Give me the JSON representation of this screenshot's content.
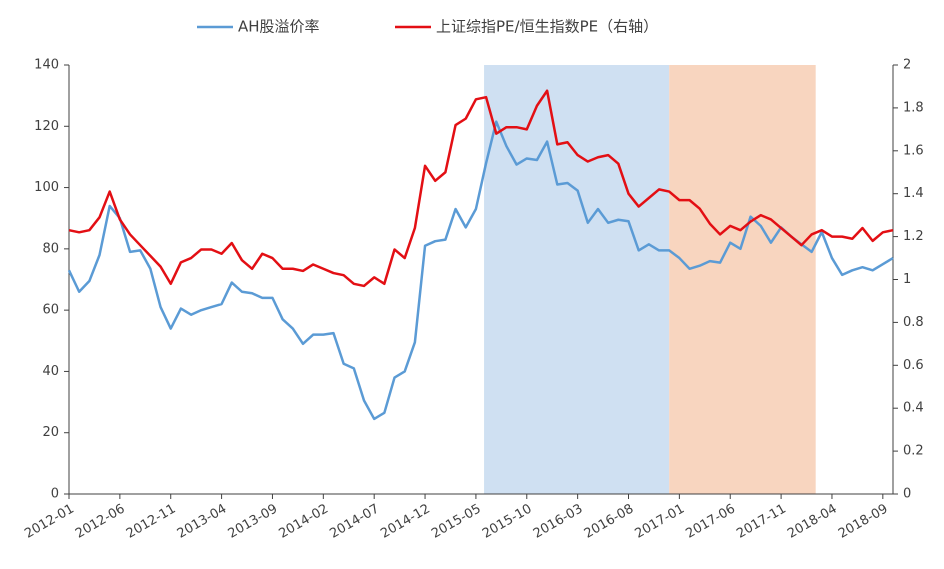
{
  "chart_data": {
    "type": "line",
    "categories": [
      "2012-01",
      null,
      null,
      null,
      null,
      "2012-06",
      null,
      null,
      null,
      null,
      "2012-11",
      null,
      null,
      null,
      null,
      "2013-04",
      null,
      null,
      null,
      null,
      "2013-09",
      null,
      null,
      null,
      null,
      "2014-02",
      null,
      null,
      null,
      null,
      "2014-07",
      null,
      null,
      null,
      null,
      "2014-12",
      null,
      null,
      null,
      null,
      "2015-05",
      null,
      null,
      null,
      null,
      "2015-10",
      null,
      null,
      null,
      null,
      "2016-03",
      null,
      null,
      null,
      null,
      "2016-08",
      null,
      null,
      null,
      null,
      "2017-01",
      null,
      null,
      null,
      null,
      "2017-06",
      null,
      null,
      null,
      null,
      "2017-11",
      null,
      null,
      null,
      null,
      "2018-04",
      null,
      null,
      null,
      null,
      "2018-09",
      null
    ],
    "series": [
      {
        "name": "AH股溢价率",
        "color": "#5b9bd5",
        "values": [
          73,
          66,
          69.5,
          78,
          94,
          90,
          79,
          79.5,
          73.5,
          61,
          54,
          60.5,
          58.5,
          60,
          61,
          62,
          69,
          66,
          65.5,
          64,
          64,
          57,
          54,
          49,
          52,
          52,
          52.5,
          42.5,
          41,
          30.5,
          24.5,
          26.5,
          38,
          40,
          49.5,
          81,
          82.5,
          83,
          93,
          87,
          93,
          108,
          121.5,
          113.5,
          107.5,
          109.5,
          109,
          115,
          101,
          101.5,
          99,
          88.5,
          93,
          88.5,
          89.5,
          89,
          79.5,
          81.5,
          79.5,
          79.5,
          77,
          73.5,
          74.5,
          76,
          75.5,
          82,
          80,
          90.5,
          87.5,
          82,
          87,
          84,
          81.5,
          79,
          85.5,
          77,
          71.5,
          73,
          74,
          73,
          75,
          77
        ]
      },
      {
        "name": "上证综指PE/恒生指数PE（右轴）",
        "color": "#e30f14",
        "axis": "y2",
        "values": [
          1.23,
          1.22,
          1.23,
          1.29,
          1.41,
          1.28,
          1.21,
          1.16,
          1.11,
          1.06,
          0.98,
          1.08,
          1.1,
          1.14,
          1.14,
          1.12,
          1.17,
          1.09,
          1.05,
          1.12,
          1.1,
          1.05,
          1.05,
          1.04,
          1.07,
          1.05,
          1.03,
          1.02,
          0.98,
          0.97,
          1.01,
          0.98,
          1.14,
          1.1,
          1.24,
          1.53,
          1.46,
          1.5,
          1.72,
          1.75,
          1.84,
          1.85,
          1.68,
          1.71,
          1.71,
          1.7,
          1.81,
          1.88,
          1.63,
          1.64,
          1.58,
          1.55,
          1.57,
          1.58,
          1.54,
          1.4,
          1.34,
          1.38,
          1.42,
          1.41,
          1.37,
          1.37,
          1.33,
          1.26,
          1.21,
          1.25,
          1.23,
          1.27,
          1.3,
          1.28,
          1.24,
          1.2,
          1.16,
          1.21,
          1.23,
          1.2,
          1.2,
          1.19,
          1.24,
          1.18,
          1.22,
          1.23
        ]
      }
    ],
    "ylim": [
      0,
      140
    ],
    "yticks": [
      0,
      20,
      40,
      60,
      80,
      100,
      120,
      140
    ],
    "y2lim": [
      0,
      2
    ],
    "y2ticks": [
      0,
      0.2,
      0.4,
      0.6,
      0.8,
      1,
      1.2,
      1.4,
      1.6,
      1.8,
      2
    ],
    "bands": [
      {
        "from": 40.8,
        "to": 59,
        "color": "#cfe0f2"
      },
      {
        "from": 59,
        "to": 73.4,
        "color": "#f8d5bf"
      }
    ],
    "legend": "top"
  }
}
